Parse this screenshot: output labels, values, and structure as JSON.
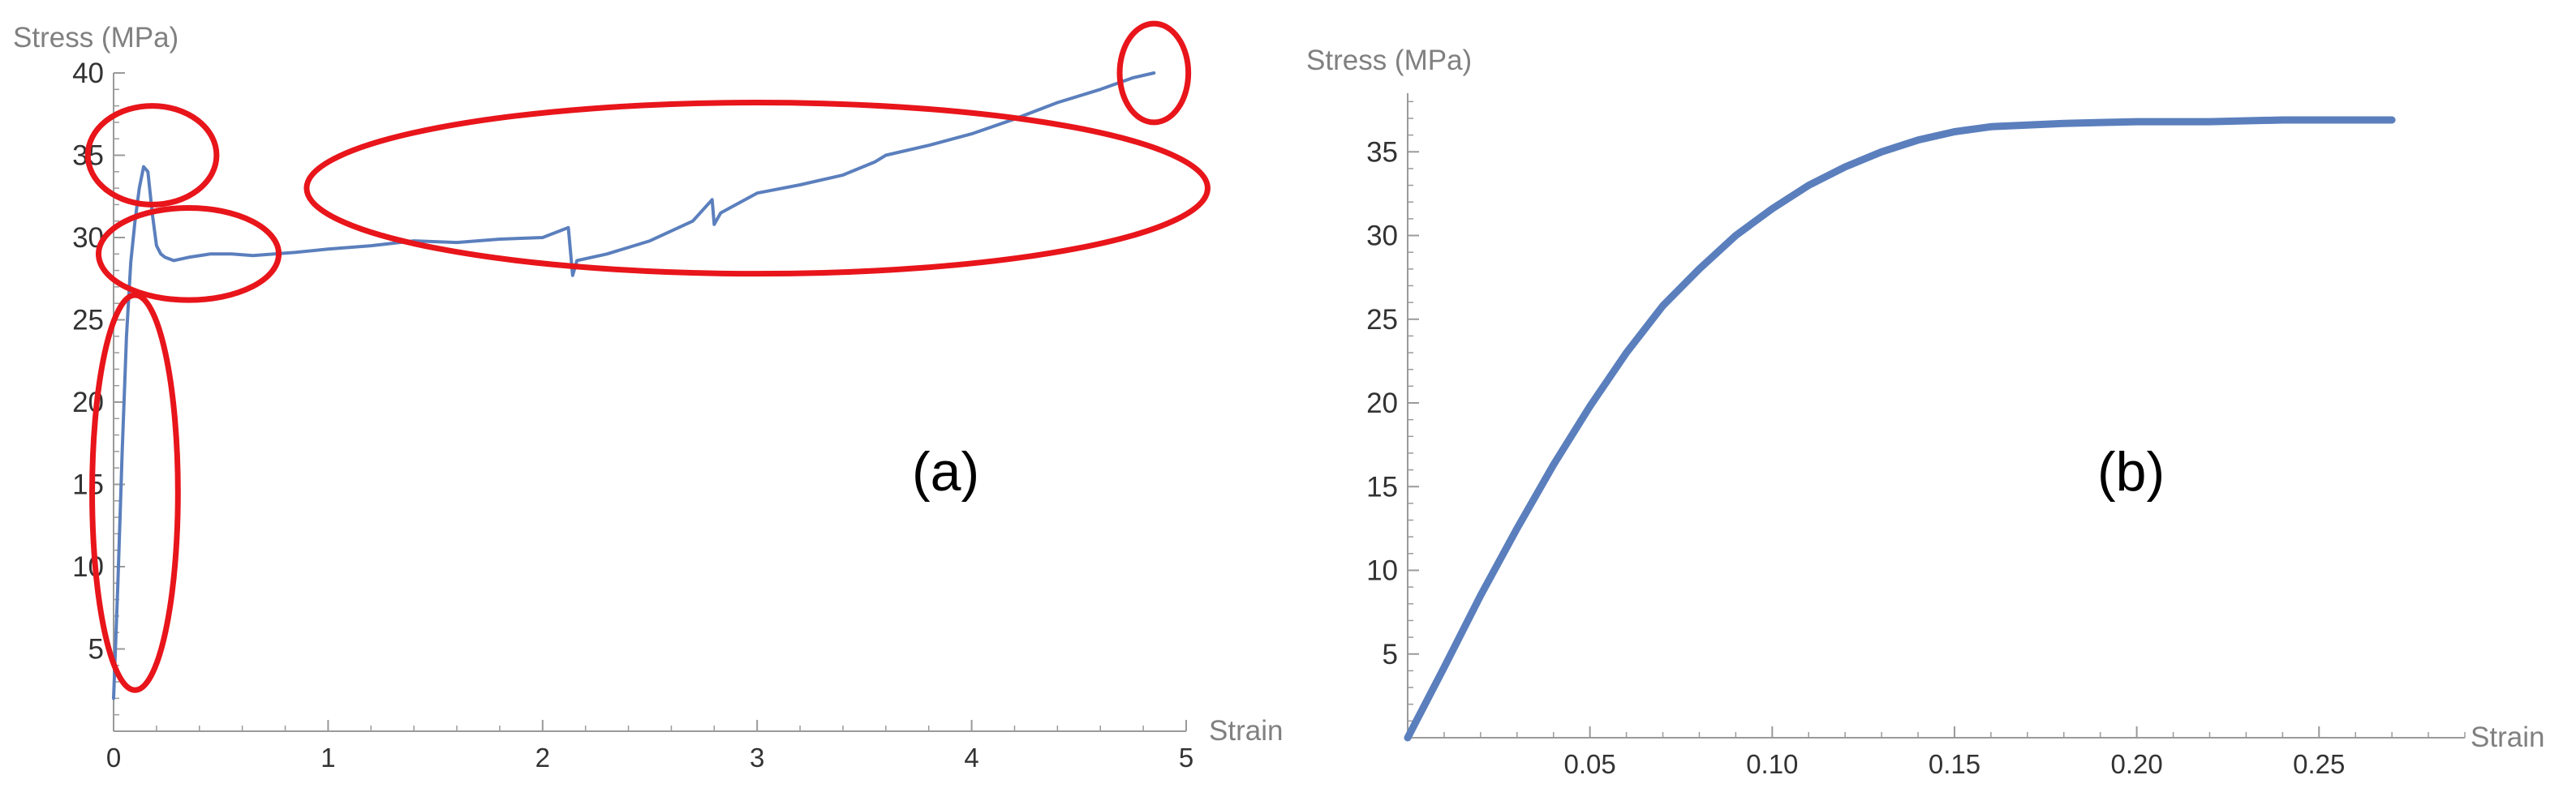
{
  "chart_data": [
    {
      "type": "line",
      "panel_label": "(a)",
      "xlabel": "Strain",
      "ylabel": "Stress (MPa)",
      "xlim": [
        0,
        5
      ],
      "ylim": [
        0,
        40
      ],
      "x_ticks": [
        0,
        1,
        2,
        3,
        4,
        5
      ],
      "y_ticks": [
        5,
        10,
        15,
        20,
        25,
        30,
        35,
        40
      ],
      "series_color": "#5b7fbd",
      "annotation_color": "#e8151b",
      "series": [
        {
          "x": [
            0,
            0.02,
            0.04,
            0.06,
            0.08,
            0.1,
            0.12,
            0.14,
            0.16,
            0.18,
            0.2,
            0.22,
            0.24,
            0.28,
            0.35,
            0.45,
            0.55,
            0.65,
            0.75,
            0.85,
            1.0,
            1.2,
            1.4,
            1.6,
            1.8,
            2.0,
            2.12,
            2.14,
            2.16,
            2.3,
            2.5,
            2.7,
            2.79,
            2.8,
            2.83,
            3.0,
            3.2,
            3.4,
            3.55,
            3.6,
            3.8,
            4.0,
            4.2,
            4.4,
            4.6,
            4.75,
            4.85
          ],
          "y": [
            2,
            9,
            17,
            24,
            28.5,
            31,
            33,
            34.3,
            34.0,
            31.5,
            29.5,
            29.0,
            28.8,
            28.6,
            28.8,
            29.0,
            29.0,
            28.9,
            29.0,
            29.1,
            29.3,
            29.5,
            29.8,
            29.7,
            29.9,
            30.0,
            30.6,
            27.7,
            28.6,
            29.0,
            29.8,
            31.0,
            32.3,
            30.8,
            31.5,
            32.7,
            33.2,
            33.8,
            34.6,
            35.0,
            35.6,
            36.3,
            37.2,
            38.2,
            39.0,
            39.7,
            40.0
          ]
        }
      ],
      "annotations": [
        {
          "type": "ellipse",
          "cx": 0.1,
          "cy": 14.5,
          "rx": 0.2,
          "ry": 12
        },
        {
          "type": "ellipse",
          "cx": 0.18,
          "cy": 35,
          "rx": 0.3,
          "ry": 3
        },
        {
          "type": "ellipse",
          "cx": 0.35,
          "cy": 29,
          "rx": 0.42,
          "ry": 2.8
        },
        {
          "type": "ellipse",
          "cx": 3.0,
          "cy": 33,
          "rx": 2.1,
          "ry": 5.2
        },
        {
          "type": "ellipse",
          "cx": 4.85,
          "cy": 40,
          "rx": 0.16,
          "ry": 3
        }
      ]
    },
    {
      "type": "line",
      "panel_label": "(b)",
      "xlabel": "Strain",
      "ylabel": "Stress (MPa)",
      "xlim": [
        0,
        0.29
      ],
      "ylim": [
        0,
        38.5
      ],
      "x_ticks": [
        0.05,
        0.1,
        0.15,
        0.2,
        0.25
      ],
      "x_tick_labels": [
        "0.05",
        "0.10",
        "0.15",
        "0.20",
        "0.25"
      ],
      "y_ticks": [
        5,
        10,
        15,
        20,
        25,
        30,
        35
      ],
      "series_color": "#5b7fbd",
      "series": [
        {
          "x": [
            0,
            0.01,
            0.02,
            0.03,
            0.04,
            0.05,
            0.06,
            0.07,
            0.08,
            0.09,
            0.1,
            0.11,
            0.12,
            0.13,
            0.14,
            0.15,
            0.16,
            0.17,
            0.18,
            0.19,
            0.2,
            0.22,
            0.24,
            0.26,
            0.27
          ],
          "y": [
            0,
            4.2,
            8.5,
            12.5,
            16.3,
            19.8,
            23.0,
            25.8,
            28.0,
            30.0,
            31.6,
            33.0,
            34.1,
            35.0,
            35.7,
            36.2,
            36.5,
            36.6,
            36.7,
            36.75,
            36.8,
            36.8,
            36.9,
            36.9,
            36.9
          ]
        }
      ]
    }
  ]
}
